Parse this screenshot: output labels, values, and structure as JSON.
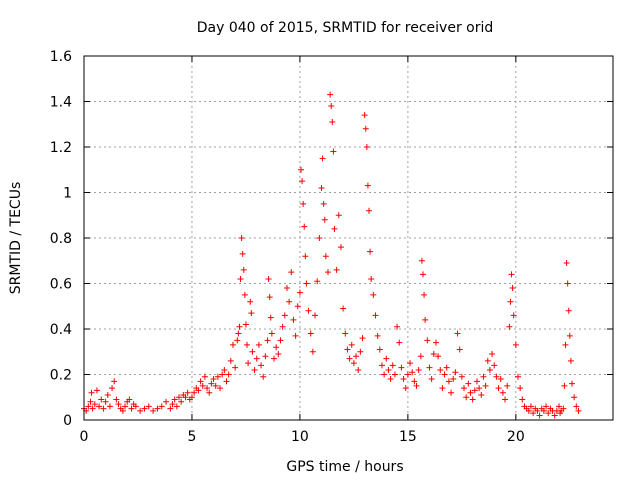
{
  "chart_data": {
    "type": "scatter",
    "title": "Day 040 of 2015, SRMTID for receiver orid",
    "xlabel": "GPS time / hours",
    "ylabel": "SRMTID / TECUs",
    "xlim": [
      0,
      24.5
    ],
    "ylim": [
      0,
      1.6
    ],
    "xticks": [
      0,
      5,
      10,
      15,
      20
    ],
    "xtick_labels": [
      "0",
      "5",
      "10",
      "15",
      "20"
    ],
    "yticks": [
      0,
      0.2,
      0.4,
      0.6,
      0.8,
      1.0,
      1.2,
      1.4,
      1.6
    ],
    "ytick_labels": [
      "0",
      "0.2",
      "0.4",
      "0.6",
      "0.8",
      "1",
      "1.2",
      "1.4",
      "1.6"
    ],
    "grid": true,
    "marker": "+",
    "color": "#ff0000",
    "series": [
      {
        "name": "SRMTID",
        "points": [
          [
            0.0,
            0.05
          ],
          [
            0.1,
            0.04
          ],
          [
            0.2,
            0.06
          ],
          [
            0.3,
            0.08
          ],
          [
            0.35,
            0.12
          ],
          [
            0.4,
            0.05
          ],
          [
            0.5,
            0.07
          ],
          [
            0.6,
            0.13
          ],
          [
            0.7,
            0.06
          ],
          [
            0.8,
            0.09
          ],
          [
            0.9,
            0.05
          ],
          [
            1.0,
            0.08
          ],
          [
            1.1,
            0.11
          ],
          [
            1.2,
            0.06
          ],
          [
            1.3,
            0.14
          ],
          [
            1.4,
            0.17
          ],
          [
            1.5,
            0.09
          ],
          [
            1.6,
            0.07
          ],
          [
            1.7,
            0.05
          ],
          [
            1.8,
            0.04
          ],
          [
            1.9,
            0.06
          ],
          [
            2.0,
            0.08
          ],
          [
            2.1,
            0.09
          ],
          [
            2.2,
            0.05
          ],
          [
            2.3,
            0.07
          ],
          [
            2.4,
            0.06
          ],
          [
            2.6,
            0.04
          ],
          [
            2.8,
            0.05
          ],
          [
            3.0,
            0.06
          ],
          [
            3.2,
            0.04
          ],
          [
            3.4,
            0.05
          ],
          [
            3.6,
            0.06
          ],
          [
            3.8,
            0.08
          ],
          [
            4.0,
            0.05
          ],
          [
            4.1,
            0.07
          ],
          [
            4.2,
            0.09
          ],
          [
            4.3,
            0.06
          ],
          [
            4.4,
            0.1
          ],
          [
            4.5,
            0.08
          ],
          [
            4.6,
            0.11
          ],
          [
            4.7,
            0.1
          ],
          [
            4.8,
            0.12
          ],
          [
            4.9,
            0.09
          ],
          [
            5.0,
            0.1
          ],
          [
            5.1,
            0.12
          ],
          [
            5.2,
            0.14
          ],
          [
            5.3,
            0.13
          ],
          [
            5.4,
            0.17
          ],
          [
            5.5,
            0.15
          ],
          [
            5.6,
            0.19
          ],
          [
            5.7,
            0.14
          ],
          [
            5.8,
            0.12
          ],
          [
            5.9,
            0.16
          ],
          [
            6.0,
            0.18
          ],
          [
            6.1,
            0.15
          ],
          [
            6.2,
            0.19
          ],
          [
            6.3,
            0.14
          ],
          [
            6.4,
            0.2
          ],
          [
            6.5,
            0.22
          ],
          [
            6.6,
            0.17
          ],
          [
            6.7,
            0.2
          ],
          [
            6.8,
            0.26
          ],
          [
            6.9,
            0.33
          ],
          [
            7.0,
            0.23
          ],
          [
            7.1,
            0.35
          ],
          [
            7.15,
            0.38
          ],
          [
            7.2,
            0.41
          ],
          [
            7.25,
            0.62
          ],
          [
            7.3,
            0.8
          ],
          [
            7.35,
            0.73
          ],
          [
            7.4,
            0.66
          ],
          [
            7.45,
            0.55
          ],
          [
            7.5,
            0.42
          ],
          [
            7.55,
            0.33
          ],
          [
            7.6,
            0.25
          ],
          [
            7.7,
            0.52
          ],
          [
            7.75,
            0.47
          ],
          [
            7.8,
            0.3
          ],
          [
            7.9,
            0.22
          ],
          [
            8.0,
            0.27
          ],
          [
            8.1,
            0.33
          ],
          [
            8.2,
            0.24
          ],
          [
            8.3,
            0.19
          ],
          [
            8.4,
            0.28
          ],
          [
            8.5,
            0.35
          ],
          [
            8.55,
            0.62
          ],
          [
            8.6,
            0.54
          ],
          [
            8.65,
            0.45
          ],
          [
            8.7,
            0.38
          ],
          [
            8.8,
            0.27
          ],
          [
            8.9,
            0.32
          ],
          [
            9.0,
            0.29
          ],
          [
            9.1,
            0.35
          ],
          [
            9.2,
            0.41
          ],
          [
            9.3,
            0.46
          ],
          [
            9.4,
            0.58
          ],
          [
            9.5,
            0.52
          ],
          [
            9.6,
            0.65
          ],
          [
            9.7,
            0.44
          ],
          [
            9.8,
            0.37
          ],
          [
            9.9,
            0.5
          ],
          [
            10.0,
            0.56
          ],
          [
            10.05,
            1.1
          ],
          [
            10.1,
            1.05
          ],
          [
            10.15,
            0.95
          ],
          [
            10.2,
            0.85
          ],
          [
            10.25,
            0.72
          ],
          [
            10.3,
            0.6
          ],
          [
            10.4,
            0.48
          ],
          [
            10.5,
            0.38
          ],
          [
            10.6,
            0.3
          ],
          [
            10.7,
            0.46
          ],
          [
            10.8,
            0.61
          ],
          [
            10.9,
            0.8
          ],
          [
            11.0,
            1.02
          ],
          [
            11.05,
            1.15
          ],
          [
            11.1,
            0.95
          ],
          [
            11.15,
            0.88
          ],
          [
            11.2,
            0.72
          ],
          [
            11.3,
            0.65
          ],
          [
            11.4,
            1.43
          ],
          [
            11.45,
            1.38
          ],
          [
            11.5,
            1.31
          ],
          [
            11.55,
            1.18
          ],
          [
            11.6,
            0.84
          ],
          [
            11.7,
            0.66
          ],
          [
            11.8,
            0.9
          ],
          [
            11.9,
            0.76
          ],
          [
            12.0,
            0.49
          ],
          [
            12.1,
            0.38
          ],
          [
            12.2,
            0.31
          ],
          [
            12.3,
            0.27
          ],
          [
            12.4,
            0.33
          ],
          [
            12.5,
            0.25
          ],
          [
            12.6,
            0.28
          ],
          [
            12.7,
            0.22
          ],
          [
            12.8,
            0.3
          ],
          [
            12.9,
            0.36
          ],
          [
            13.0,
            1.34
          ],
          [
            13.05,
            1.28
          ],
          [
            13.1,
            1.2
          ],
          [
            13.15,
            1.03
          ],
          [
            13.2,
            0.92
          ],
          [
            13.25,
            0.74
          ],
          [
            13.3,
            0.62
          ],
          [
            13.4,
            0.55
          ],
          [
            13.5,
            0.46
          ],
          [
            13.6,
            0.37
          ],
          [
            13.7,
            0.31
          ],
          [
            13.8,
            0.24
          ],
          [
            13.9,
            0.2
          ],
          [
            14.0,
            0.27
          ],
          [
            14.1,
            0.22
          ],
          [
            14.2,
            0.18
          ],
          [
            14.3,
            0.24
          ],
          [
            14.4,
            0.2
          ],
          [
            14.5,
            0.41
          ],
          [
            14.6,
            0.34
          ],
          [
            14.7,
            0.23
          ],
          [
            14.8,
            0.18
          ],
          [
            14.9,
            0.14
          ],
          [
            15.0,
            0.2
          ],
          [
            15.1,
            0.25
          ],
          [
            15.2,
            0.21
          ],
          [
            15.3,
            0.17
          ],
          [
            15.4,
            0.15
          ],
          [
            15.5,
            0.22
          ],
          [
            15.6,
            0.28
          ],
          [
            15.65,
            0.7
          ],
          [
            15.7,
            0.64
          ],
          [
            15.75,
            0.55
          ],
          [
            15.8,
            0.44
          ],
          [
            15.9,
            0.35
          ],
          [
            16.0,
            0.23
          ],
          [
            16.1,
            0.18
          ],
          [
            16.2,
            0.29
          ],
          [
            16.3,
            0.34
          ],
          [
            16.4,
            0.28
          ],
          [
            16.5,
            0.22
          ],
          [
            16.6,
            0.14
          ],
          [
            16.7,
            0.2
          ],
          [
            16.8,
            0.23
          ],
          [
            16.9,
            0.17
          ],
          [
            17.0,
            0.12
          ],
          [
            17.1,
            0.18
          ],
          [
            17.2,
            0.21
          ],
          [
            17.3,
            0.38
          ],
          [
            17.4,
            0.31
          ],
          [
            17.5,
            0.19
          ],
          [
            17.6,
            0.14
          ],
          [
            17.7,
            0.1
          ],
          [
            17.8,
            0.16
          ],
          [
            17.9,
            0.12
          ],
          [
            18.0,
            0.09
          ],
          [
            18.1,
            0.13
          ],
          [
            18.2,
            0.17
          ],
          [
            18.3,
            0.14
          ],
          [
            18.4,
            0.11
          ],
          [
            18.5,
            0.19
          ],
          [
            18.6,
            0.15
          ],
          [
            18.7,
            0.26
          ],
          [
            18.8,
            0.22
          ],
          [
            18.9,
            0.29
          ],
          [
            19.0,
            0.24
          ],
          [
            19.1,
            0.19
          ],
          [
            19.2,
            0.14
          ],
          [
            19.3,
            0.18
          ],
          [
            19.4,
            0.12
          ],
          [
            19.5,
            0.09
          ],
          [
            19.6,
            0.15
          ],
          [
            19.7,
            0.41
          ],
          [
            19.75,
            0.52
          ],
          [
            19.8,
            0.64
          ],
          [
            19.85,
            0.58
          ],
          [
            19.9,
            0.46
          ],
          [
            20.0,
            0.33
          ],
          [
            20.1,
            0.19
          ],
          [
            20.2,
            0.14
          ],
          [
            20.3,
            0.09
          ],
          [
            20.4,
            0.06
          ],
          [
            20.5,
            0.05
          ],
          [
            20.6,
            0.04
          ],
          [
            20.7,
            0.06
          ],
          [
            20.8,
            0.03
          ],
          [
            20.9,
            0.05
          ],
          [
            21.0,
            0.04
          ],
          [
            21.1,
            0.02
          ],
          [
            21.2,
            0.05
          ],
          [
            21.3,
            0.04
          ],
          [
            21.4,
            0.06
          ],
          [
            21.5,
            0.03
          ],
          [
            21.6,
            0.05
          ],
          [
            21.7,
            0.04
          ],
          [
            21.8,
            0.02
          ],
          [
            21.9,
            0.04
          ],
          [
            22.0,
            0.06
          ],
          [
            22.05,
            0.03
          ],
          [
            22.1,
            0.04
          ],
          [
            22.2,
            0.05
          ],
          [
            22.25,
            0.15
          ],
          [
            22.3,
            0.33
          ],
          [
            22.35,
            0.69
          ],
          [
            22.4,
            0.6
          ],
          [
            22.45,
            0.48
          ],
          [
            22.5,
            0.37
          ],
          [
            22.55,
            0.26
          ],
          [
            22.6,
            0.16
          ],
          [
            22.7,
            0.1
          ],
          [
            22.8,
            0.06
          ],
          [
            22.9,
            0.04
          ]
        ]
      }
    ]
  }
}
